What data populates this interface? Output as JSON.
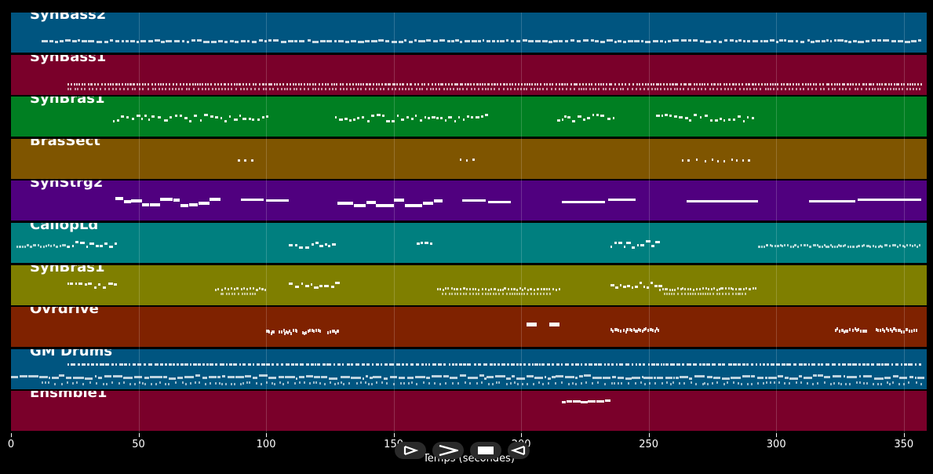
{
  "tracks": [
    {
      "name": "SynBass2",
      "color": "#005580"
    },
    {
      "name": "SynBass1",
      "color": "#7a002a"
    },
    {
      "name": "SynBras1",
      "color": "#007f22"
    },
    {
      "name": "BrasSect",
      "color": "#7f5500"
    },
    {
      "name": "SynStrg2",
      "color": "#50007f"
    },
    {
      "name": "CaliopLd",
      "color": "#007f7f"
    },
    {
      "name": "SynBras1",
      "color": "#7f7f00"
    },
    {
      "name": "Ovrdrive",
      "color": "#7f2200"
    },
    {
      "name": "GM Drums",
      "color": "#005580"
    },
    {
      "name": "Ensmble1",
      "color": "#7a002a"
    }
  ],
  "x_axis": {
    "label": "Temps (secondes)",
    "range": [
      0,
      359
    ],
    "ticks": [
      "0",
      "50",
      "100",
      "150",
      "200",
      "250",
      "300",
      "350"
    ]
  },
  "playback": {
    "buttons": [
      {
        "name": "play-button",
        "icon": "play-icon"
      },
      {
        "name": "fast-forward-button",
        "icon": "fast-forward-icon"
      },
      {
        "name": "stop-button",
        "icon": "stop-icon"
      },
      {
        "name": "rewind-button",
        "icon": "rewind-icon"
      }
    ]
  }
}
